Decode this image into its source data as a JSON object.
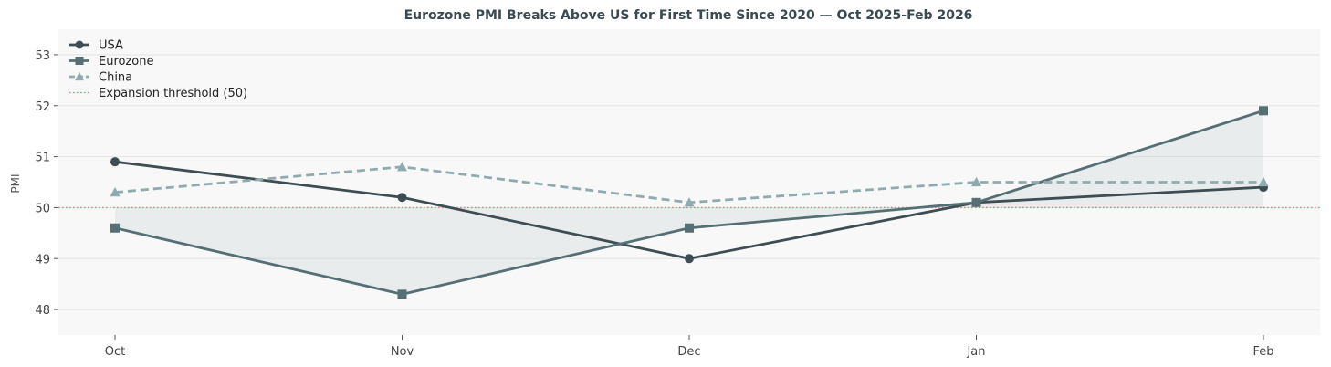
{
  "chart_data": {
    "type": "line",
    "title": "Eurozone PMI Breaks Above US for First Time Since 2020 — Oct 2025-Feb 2026",
    "xlabel": "",
    "ylabel": "PMI",
    "categories": [
      "Oct",
      "Nov",
      "Dec",
      "Jan",
      "Feb"
    ],
    "yticks": [
      48,
      49,
      50,
      51,
      52,
      53
    ],
    "ylim": [
      47.5,
      53.5
    ],
    "grid": "horizontal",
    "legend_position": "top-left",
    "series": [
      {
        "name": "USA",
        "values": [
          50.9,
          50.2,
          49.0,
          50.1,
          50.4
        ],
        "color": "#3d4d53",
        "marker": "circle",
        "line": "solid"
      },
      {
        "name": "Eurozone",
        "values": [
          49.6,
          48.3,
          49.6,
          50.1,
          51.9
        ],
        "color": "#566f74",
        "marker": "square",
        "line": "solid"
      },
      {
        "name": "China",
        "values": [
          50.3,
          50.8,
          50.1,
          50.5,
          50.5
        ],
        "color": "#90abb0",
        "marker": "triangle",
        "line": "dashed"
      }
    ],
    "threshold": {
      "name": "Expansion threshold (50)",
      "value": 50,
      "color": "#e07a7a"
    },
    "fill_between": {
      "series": "Eurozone",
      "baseline": 50,
      "color": "#b9c6c9"
    }
  }
}
